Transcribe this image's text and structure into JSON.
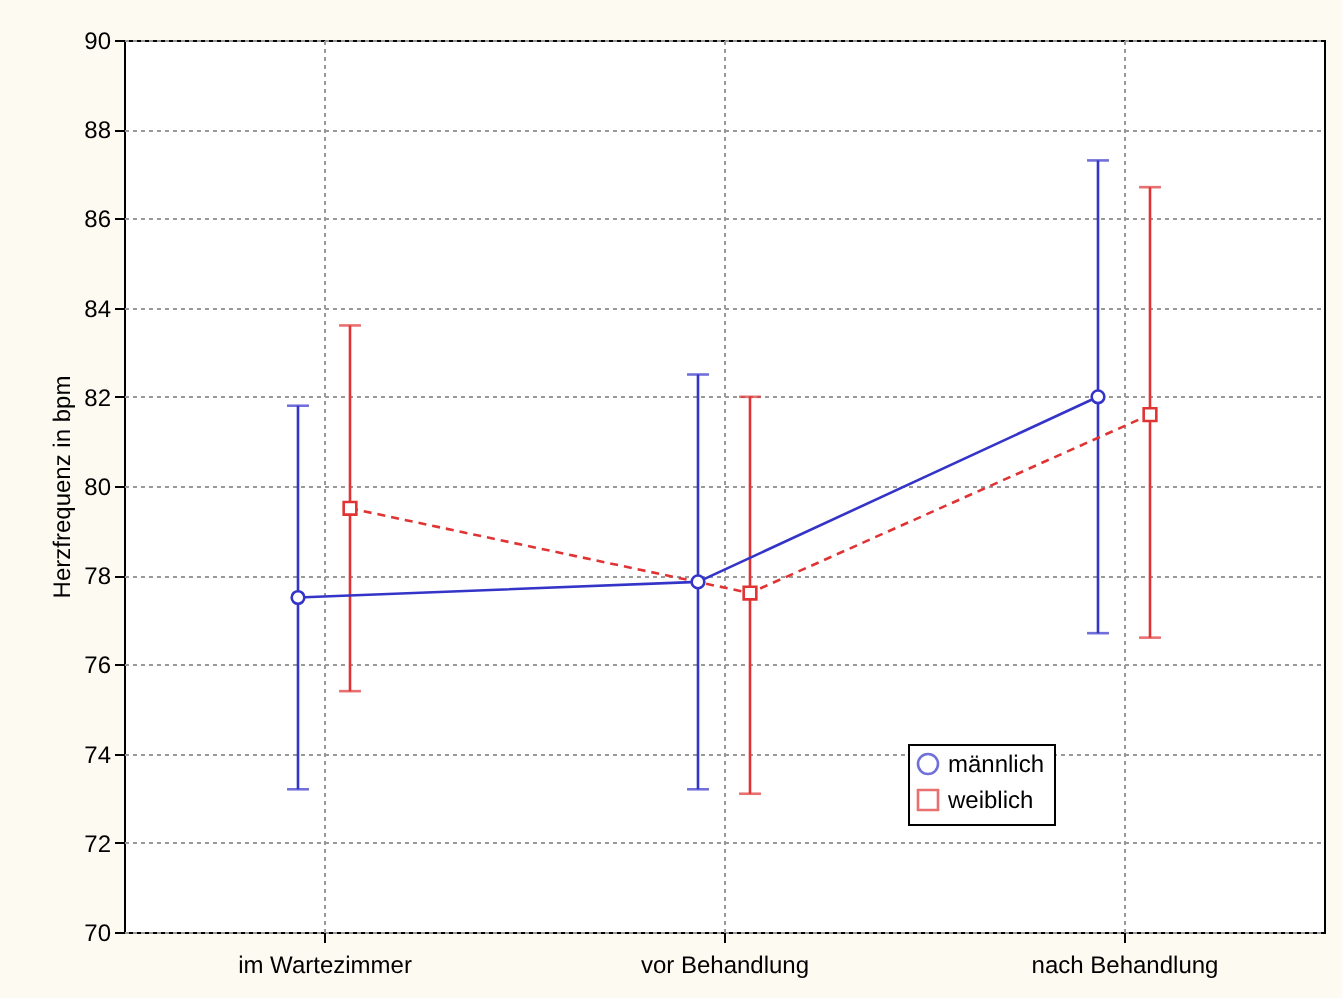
{
  "chart_data": {
    "type": "line",
    "ylabel": "Herzfrequenz in bpm",
    "categories": [
      "im Wartezimmer",
      "vor Behandlung",
      "nach Behandlung"
    ],
    "ylim": [
      70,
      90
    ],
    "yticks": [
      70,
      72,
      74,
      76,
      78,
      80,
      82,
      84,
      86,
      88,
      90
    ],
    "grid": true,
    "legend": "bottom right",
    "series": [
      {
        "name": "männlich",
        "color": "#3434c8",
        "marker": "circle",
        "line_style": "solid",
        "values": [
          77.5,
          77.85,
          82.0
        ],
        "errors": [
          [
            73.2,
            81.8
          ],
          [
            73.2,
            82.5
          ],
          [
            76.7,
            87.3
          ]
        ]
      },
      {
        "name": "weiblich",
        "color": "#e03434",
        "marker": "square",
        "line_style": "dashed",
        "values": [
          79.5,
          77.6,
          81.6
        ],
        "errors": [
          [
            75.4,
            83.6
          ],
          [
            73.1,
            82.0
          ],
          [
            76.6,
            86.7
          ]
        ]
      }
    ]
  }
}
